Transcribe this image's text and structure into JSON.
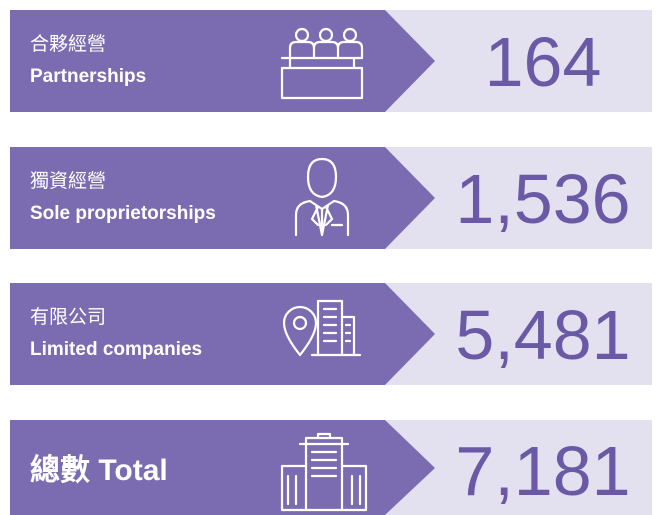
{
  "rows": [
    {
      "zh": "合夥經營",
      "en": "Partnerships",
      "value": "164"
    },
    {
      "zh": "獨資經營",
      "en": "Sole proprietorships",
      "value": "1,536"
    },
    {
      "zh": "有限公司",
      "en": "Limited companies",
      "value": "5,481"
    }
  ],
  "total": {
    "label": "總數 Total",
    "value": "7,181"
  }
}
